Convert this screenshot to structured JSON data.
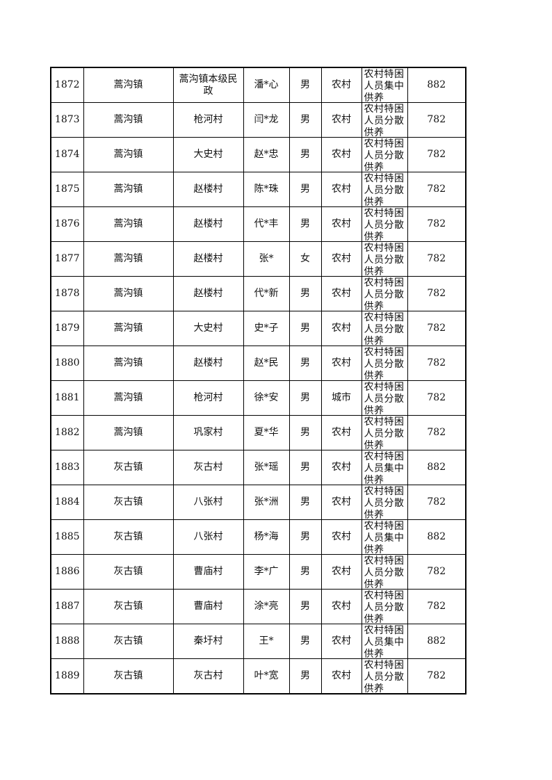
{
  "rows": [
    [
      "1872",
      "蒿沟镇",
      "蒿沟镇本级民政",
      "潘*心",
      "男",
      "农村",
      "农村特困人员集中供养",
      "882"
    ],
    [
      "1873",
      "蒿沟镇",
      "枪河村",
      "闫*龙",
      "男",
      "农村",
      "农村特困人员分散供养",
      "782"
    ],
    [
      "1874",
      "蒿沟镇",
      "大史村",
      "赵*忠",
      "男",
      "农村",
      "农村特困人员分散供养",
      "782"
    ],
    [
      "1875",
      "蒿沟镇",
      "赵楼村",
      "陈*珠",
      "男",
      "农村",
      "农村特困人员分散供养",
      "782"
    ],
    [
      "1876",
      "蒿沟镇",
      "赵楼村",
      "代*丰",
      "男",
      "农村",
      "农村特困人员分散供养",
      "782"
    ],
    [
      "1877",
      "蒿沟镇",
      "赵楼村",
      "张*",
      "女",
      "农村",
      "农村特困人员分散供养",
      "782"
    ],
    [
      "1878",
      "蒿沟镇",
      "赵楼村",
      "代*新",
      "男",
      "农村",
      "农村特困人员分散供养",
      "782"
    ],
    [
      "1879",
      "蒿沟镇",
      "大史村",
      "史*子",
      "男",
      "农村",
      "农村特困人员分散供养",
      "782"
    ],
    [
      "1880",
      "蒿沟镇",
      "赵楼村",
      "赵*民",
      "男",
      "农村",
      "农村特困人员分散供养",
      "782"
    ],
    [
      "1881",
      "蒿沟镇",
      "枪河村",
      "徐*安",
      "男",
      "城市",
      "农村特困人员分散供养",
      "782"
    ],
    [
      "1882",
      "蒿沟镇",
      "巩家村",
      "夏*华",
      "男",
      "农村",
      "农村特困人员分散供养",
      "782"
    ],
    [
      "1883",
      "灰古镇",
      "灰古村",
      "张*瑶",
      "男",
      "农村",
      "农村特困人员集中供养",
      "882"
    ],
    [
      "1884",
      "灰古镇",
      "八张村",
      "张*洲",
      "男",
      "农村",
      "农村特困人员分散供养",
      "782"
    ],
    [
      "1885",
      "灰古镇",
      "八张村",
      "杨*海",
      "男",
      "农村",
      "农村特困人员集中供养",
      "882"
    ],
    [
      "1886",
      "灰古镇",
      "曹庙村",
      "李*广",
      "男",
      "农村",
      "农村特困人员分散供养",
      "782"
    ],
    [
      "1887",
      "灰古镇",
      "曹庙村",
      "涂*亮",
      "男",
      "农村",
      "农村特困人员分散供养",
      "782"
    ],
    [
      "1888",
      "灰古镇",
      "秦圩村",
      "王*",
      "男",
      "农村",
      "农村特困人员集中供养",
      "882"
    ],
    [
      "1889",
      "灰古镇",
      "灰古村",
      "叶*宽",
      "男",
      "农村",
      "农村特困人员分散供养",
      "782"
    ]
  ]
}
